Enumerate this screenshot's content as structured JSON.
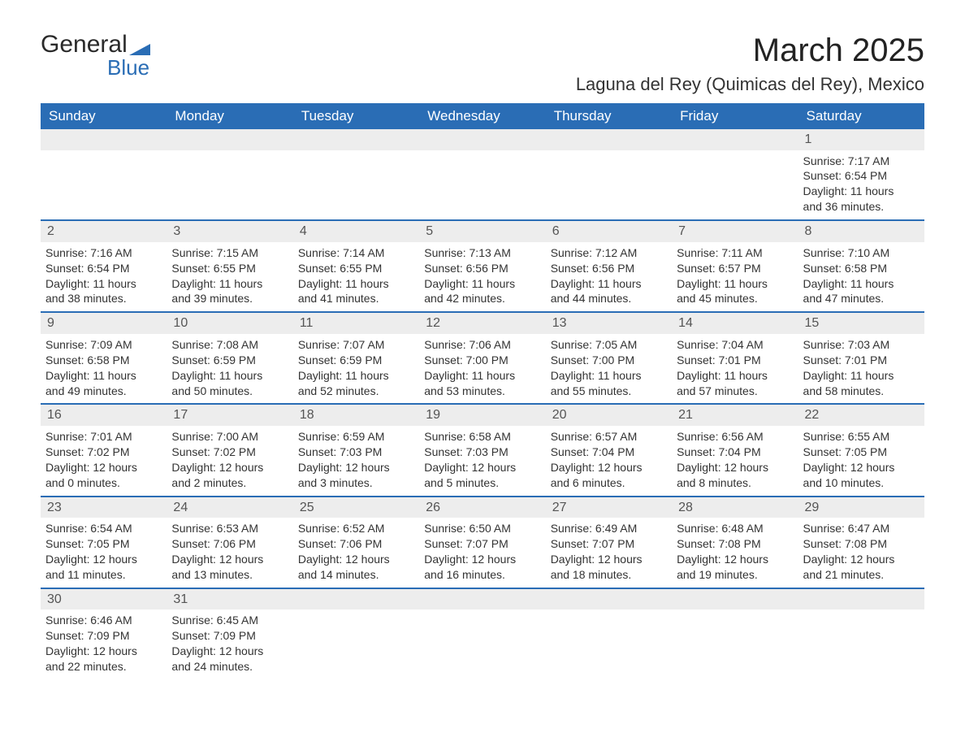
{
  "logo": {
    "text1": "General",
    "text2": "Blue",
    "icon_color": "#2a6db5"
  },
  "title": "March 2025",
  "location": "Laguna del Rey (Quimicas del Rey), Mexico",
  "colors": {
    "header_bg": "#2a6db5",
    "header_text": "#ffffff",
    "daynum_bg": "#ededed",
    "row_divider": "#2a6db5",
    "body_text": "#333333",
    "page_bg": "#ffffff"
  },
  "weekdays": [
    "Sunday",
    "Monday",
    "Tuesday",
    "Wednesday",
    "Thursday",
    "Friday",
    "Saturday"
  ],
  "weeks": [
    [
      null,
      null,
      null,
      null,
      null,
      null,
      {
        "day": "1",
        "sunrise": "Sunrise: 7:17 AM",
        "sunset": "Sunset: 6:54 PM",
        "daylight1": "Daylight: 11 hours",
        "daylight2": "and 36 minutes."
      }
    ],
    [
      {
        "day": "2",
        "sunrise": "Sunrise: 7:16 AM",
        "sunset": "Sunset: 6:54 PM",
        "daylight1": "Daylight: 11 hours",
        "daylight2": "and 38 minutes."
      },
      {
        "day": "3",
        "sunrise": "Sunrise: 7:15 AM",
        "sunset": "Sunset: 6:55 PM",
        "daylight1": "Daylight: 11 hours",
        "daylight2": "and 39 minutes."
      },
      {
        "day": "4",
        "sunrise": "Sunrise: 7:14 AM",
        "sunset": "Sunset: 6:55 PM",
        "daylight1": "Daylight: 11 hours",
        "daylight2": "and 41 minutes."
      },
      {
        "day": "5",
        "sunrise": "Sunrise: 7:13 AM",
        "sunset": "Sunset: 6:56 PM",
        "daylight1": "Daylight: 11 hours",
        "daylight2": "and 42 minutes."
      },
      {
        "day": "6",
        "sunrise": "Sunrise: 7:12 AM",
        "sunset": "Sunset: 6:56 PM",
        "daylight1": "Daylight: 11 hours",
        "daylight2": "and 44 minutes."
      },
      {
        "day": "7",
        "sunrise": "Sunrise: 7:11 AM",
        "sunset": "Sunset: 6:57 PM",
        "daylight1": "Daylight: 11 hours",
        "daylight2": "and 45 minutes."
      },
      {
        "day": "8",
        "sunrise": "Sunrise: 7:10 AM",
        "sunset": "Sunset: 6:58 PM",
        "daylight1": "Daylight: 11 hours",
        "daylight2": "and 47 minutes."
      }
    ],
    [
      {
        "day": "9",
        "sunrise": "Sunrise: 7:09 AM",
        "sunset": "Sunset: 6:58 PM",
        "daylight1": "Daylight: 11 hours",
        "daylight2": "and 49 minutes."
      },
      {
        "day": "10",
        "sunrise": "Sunrise: 7:08 AM",
        "sunset": "Sunset: 6:59 PM",
        "daylight1": "Daylight: 11 hours",
        "daylight2": "and 50 minutes."
      },
      {
        "day": "11",
        "sunrise": "Sunrise: 7:07 AM",
        "sunset": "Sunset: 6:59 PM",
        "daylight1": "Daylight: 11 hours",
        "daylight2": "and 52 minutes."
      },
      {
        "day": "12",
        "sunrise": "Sunrise: 7:06 AM",
        "sunset": "Sunset: 7:00 PM",
        "daylight1": "Daylight: 11 hours",
        "daylight2": "and 53 minutes."
      },
      {
        "day": "13",
        "sunrise": "Sunrise: 7:05 AM",
        "sunset": "Sunset: 7:00 PM",
        "daylight1": "Daylight: 11 hours",
        "daylight2": "and 55 minutes."
      },
      {
        "day": "14",
        "sunrise": "Sunrise: 7:04 AM",
        "sunset": "Sunset: 7:01 PM",
        "daylight1": "Daylight: 11 hours",
        "daylight2": "and 57 minutes."
      },
      {
        "day": "15",
        "sunrise": "Sunrise: 7:03 AM",
        "sunset": "Sunset: 7:01 PM",
        "daylight1": "Daylight: 11 hours",
        "daylight2": "and 58 minutes."
      }
    ],
    [
      {
        "day": "16",
        "sunrise": "Sunrise: 7:01 AM",
        "sunset": "Sunset: 7:02 PM",
        "daylight1": "Daylight: 12 hours",
        "daylight2": "and 0 minutes."
      },
      {
        "day": "17",
        "sunrise": "Sunrise: 7:00 AM",
        "sunset": "Sunset: 7:02 PM",
        "daylight1": "Daylight: 12 hours",
        "daylight2": "and 2 minutes."
      },
      {
        "day": "18",
        "sunrise": "Sunrise: 6:59 AM",
        "sunset": "Sunset: 7:03 PM",
        "daylight1": "Daylight: 12 hours",
        "daylight2": "and 3 minutes."
      },
      {
        "day": "19",
        "sunrise": "Sunrise: 6:58 AM",
        "sunset": "Sunset: 7:03 PM",
        "daylight1": "Daylight: 12 hours",
        "daylight2": "and 5 minutes."
      },
      {
        "day": "20",
        "sunrise": "Sunrise: 6:57 AM",
        "sunset": "Sunset: 7:04 PM",
        "daylight1": "Daylight: 12 hours",
        "daylight2": "and 6 minutes."
      },
      {
        "day": "21",
        "sunrise": "Sunrise: 6:56 AM",
        "sunset": "Sunset: 7:04 PM",
        "daylight1": "Daylight: 12 hours",
        "daylight2": "and 8 minutes."
      },
      {
        "day": "22",
        "sunrise": "Sunrise: 6:55 AM",
        "sunset": "Sunset: 7:05 PM",
        "daylight1": "Daylight: 12 hours",
        "daylight2": "and 10 minutes."
      }
    ],
    [
      {
        "day": "23",
        "sunrise": "Sunrise: 6:54 AM",
        "sunset": "Sunset: 7:05 PM",
        "daylight1": "Daylight: 12 hours",
        "daylight2": "and 11 minutes."
      },
      {
        "day": "24",
        "sunrise": "Sunrise: 6:53 AM",
        "sunset": "Sunset: 7:06 PM",
        "daylight1": "Daylight: 12 hours",
        "daylight2": "and 13 minutes."
      },
      {
        "day": "25",
        "sunrise": "Sunrise: 6:52 AM",
        "sunset": "Sunset: 7:06 PM",
        "daylight1": "Daylight: 12 hours",
        "daylight2": "and 14 minutes."
      },
      {
        "day": "26",
        "sunrise": "Sunrise: 6:50 AM",
        "sunset": "Sunset: 7:07 PM",
        "daylight1": "Daylight: 12 hours",
        "daylight2": "and 16 minutes."
      },
      {
        "day": "27",
        "sunrise": "Sunrise: 6:49 AM",
        "sunset": "Sunset: 7:07 PM",
        "daylight1": "Daylight: 12 hours",
        "daylight2": "and 18 minutes."
      },
      {
        "day": "28",
        "sunrise": "Sunrise: 6:48 AM",
        "sunset": "Sunset: 7:08 PM",
        "daylight1": "Daylight: 12 hours",
        "daylight2": "and 19 minutes."
      },
      {
        "day": "29",
        "sunrise": "Sunrise: 6:47 AM",
        "sunset": "Sunset: 7:08 PM",
        "daylight1": "Daylight: 12 hours",
        "daylight2": "and 21 minutes."
      }
    ],
    [
      {
        "day": "30",
        "sunrise": "Sunrise: 6:46 AM",
        "sunset": "Sunset: 7:09 PM",
        "daylight1": "Daylight: 12 hours",
        "daylight2": "and 22 minutes."
      },
      {
        "day": "31",
        "sunrise": "Sunrise: 6:45 AM",
        "sunset": "Sunset: 7:09 PM",
        "daylight1": "Daylight: 12 hours",
        "daylight2": "and 24 minutes."
      },
      null,
      null,
      null,
      null,
      null
    ]
  ]
}
